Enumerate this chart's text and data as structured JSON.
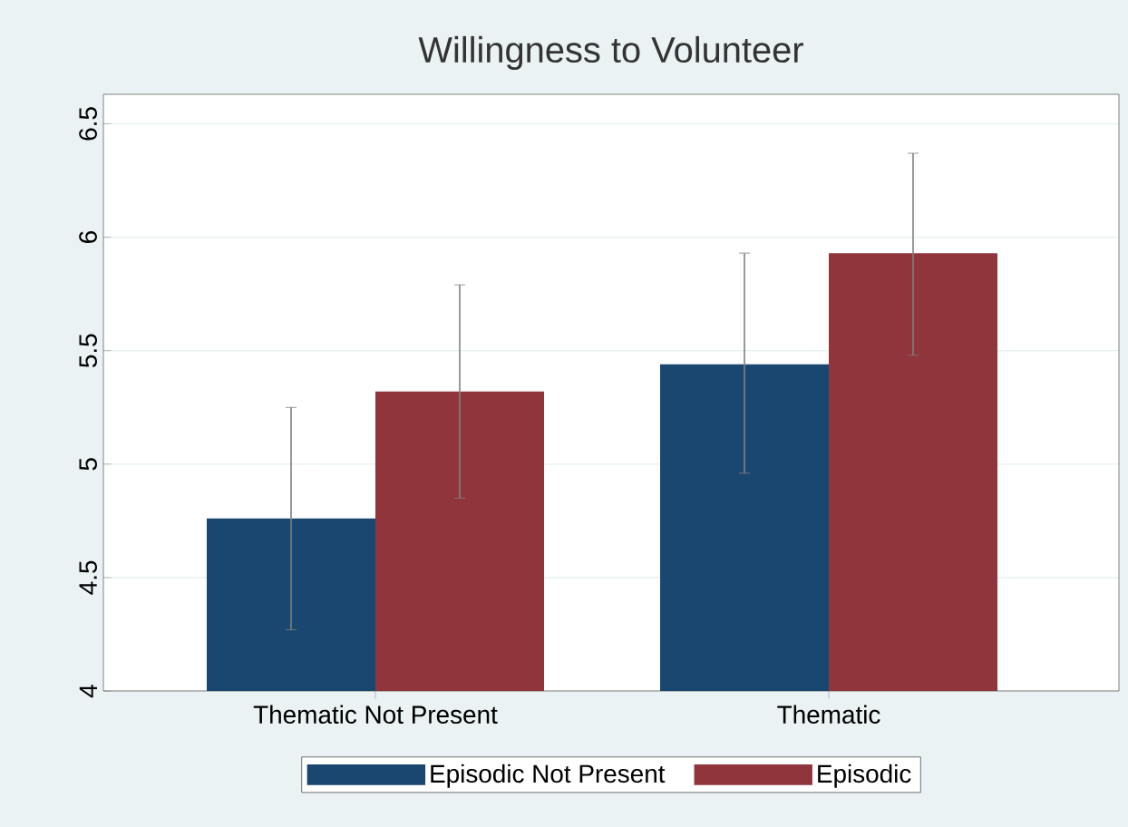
{
  "chart_data": {
    "type": "bar",
    "title": "Willingness to Volunteer",
    "categories": [
      "Thematic Not Present",
      "Thematic"
    ],
    "series": [
      {
        "name": "Episodic Not Present",
        "color": "#1a476f",
        "values": [
          4.76,
          5.44
        ],
        "errors": [
          [
            4.27,
            5.25
          ],
          [
            4.96,
            5.93
          ]
        ]
      },
      {
        "name": "Episodic",
        "color": "#90353b",
        "values": [
          5.32,
          5.93
        ],
        "errors": [
          [
            4.85,
            5.79
          ],
          [
            5.48,
            6.37
          ]
        ]
      }
    ],
    "ylim": [
      4,
      6.63
    ],
    "yticks": [
      4,
      4.5,
      5,
      5.5,
      6,
      6.5
    ],
    "grid": "y",
    "legend": "bottom"
  }
}
